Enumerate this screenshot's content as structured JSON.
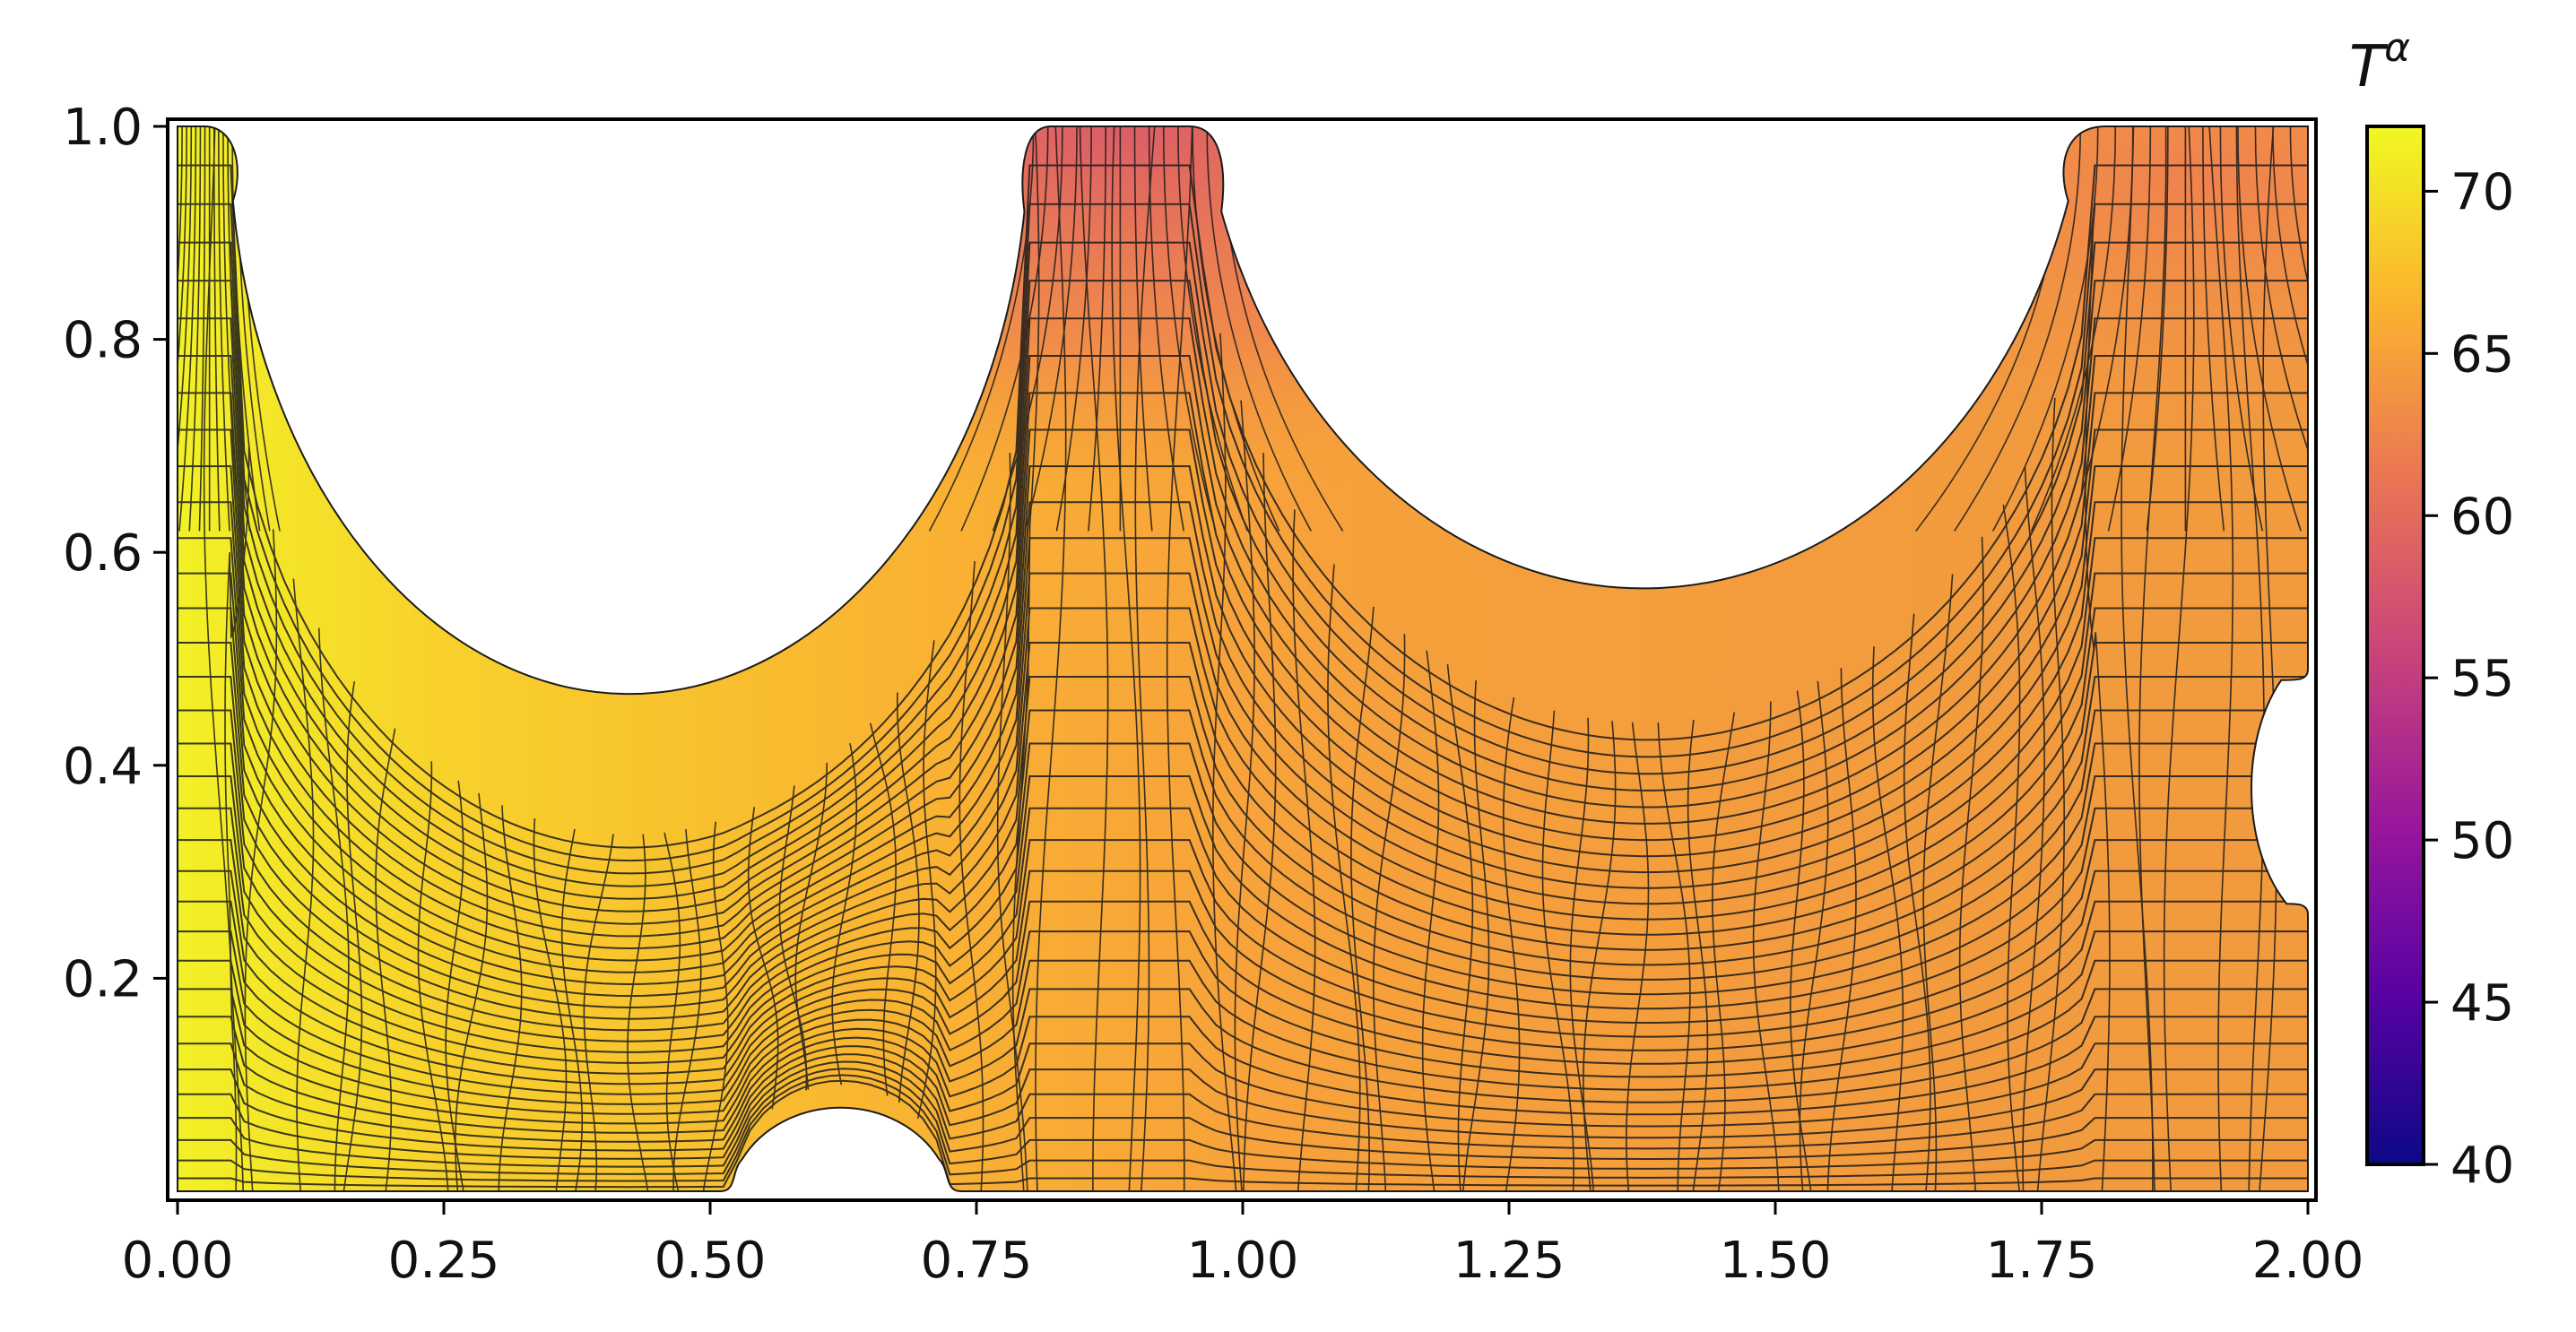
{
  "chart_data": {
    "type": "heatmap",
    "title": "",
    "xlabel": "",
    "ylabel": "",
    "xlim": [
      0.0,
      2.0
    ],
    "ylim": [
      0.0,
      1.0
    ],
    "x_ticks": [
      "0.00",
      "0.25",
      "0.50",
      "0.75",
      "1.00",
      "1.25",
      "1.50",
      "1.75",
      "2.00"
    ],
    "y_ticks": [
      "0.2",
      "0.4",
      "0.6",
      "0.8",
      "1.0"
    ],
    "grid": false,
    "description_of_field": "Temperature field on a deformed curvilinear mesh over a domain with semicircular cut-outs",
    "colorbar": {
      "label": "T",
      "label_superscript": "α",
      "range": [
        40,
        72
      ],
      "ticks": [
        "40",
        "45",
        "50",
        "55",
        "60",
        "65",
        "70"
      ],
      "colormap": "plasma",
      "colors": [
        "#0d0887",
        "#5b02a3",
        "#9a179b",
        "#cb4678",
        "#eb7852",
        "#fbb32f",
        "#f0f921"
      ]
    },
    "field_samples": [
      {
        "x": 0.02,
        "y": 0.35,
        "T": 71
      },
      {
        "x": 0.25,
        "y": 0.2,
        "T": 69
      },
      {
        "x": 0.6,
        "y": 0.3,
        "T": 67
      },
      {
        "x": 0.88,
        "y": 0.95,
        "T": 59
      },
      {
        "x": 0.88,
        "y": 0.6,
        "T": 62
      },
      {
        "x": 1.4,
        "y": 0.2,
        "T": 65
      },
      {
        "x": 1.9,
        "y": 0.9,
        "T": 62
      },
      {
        "x": 1.9,
        "y": 0.2,
        "T": 64
      }
    ]
  }
}
